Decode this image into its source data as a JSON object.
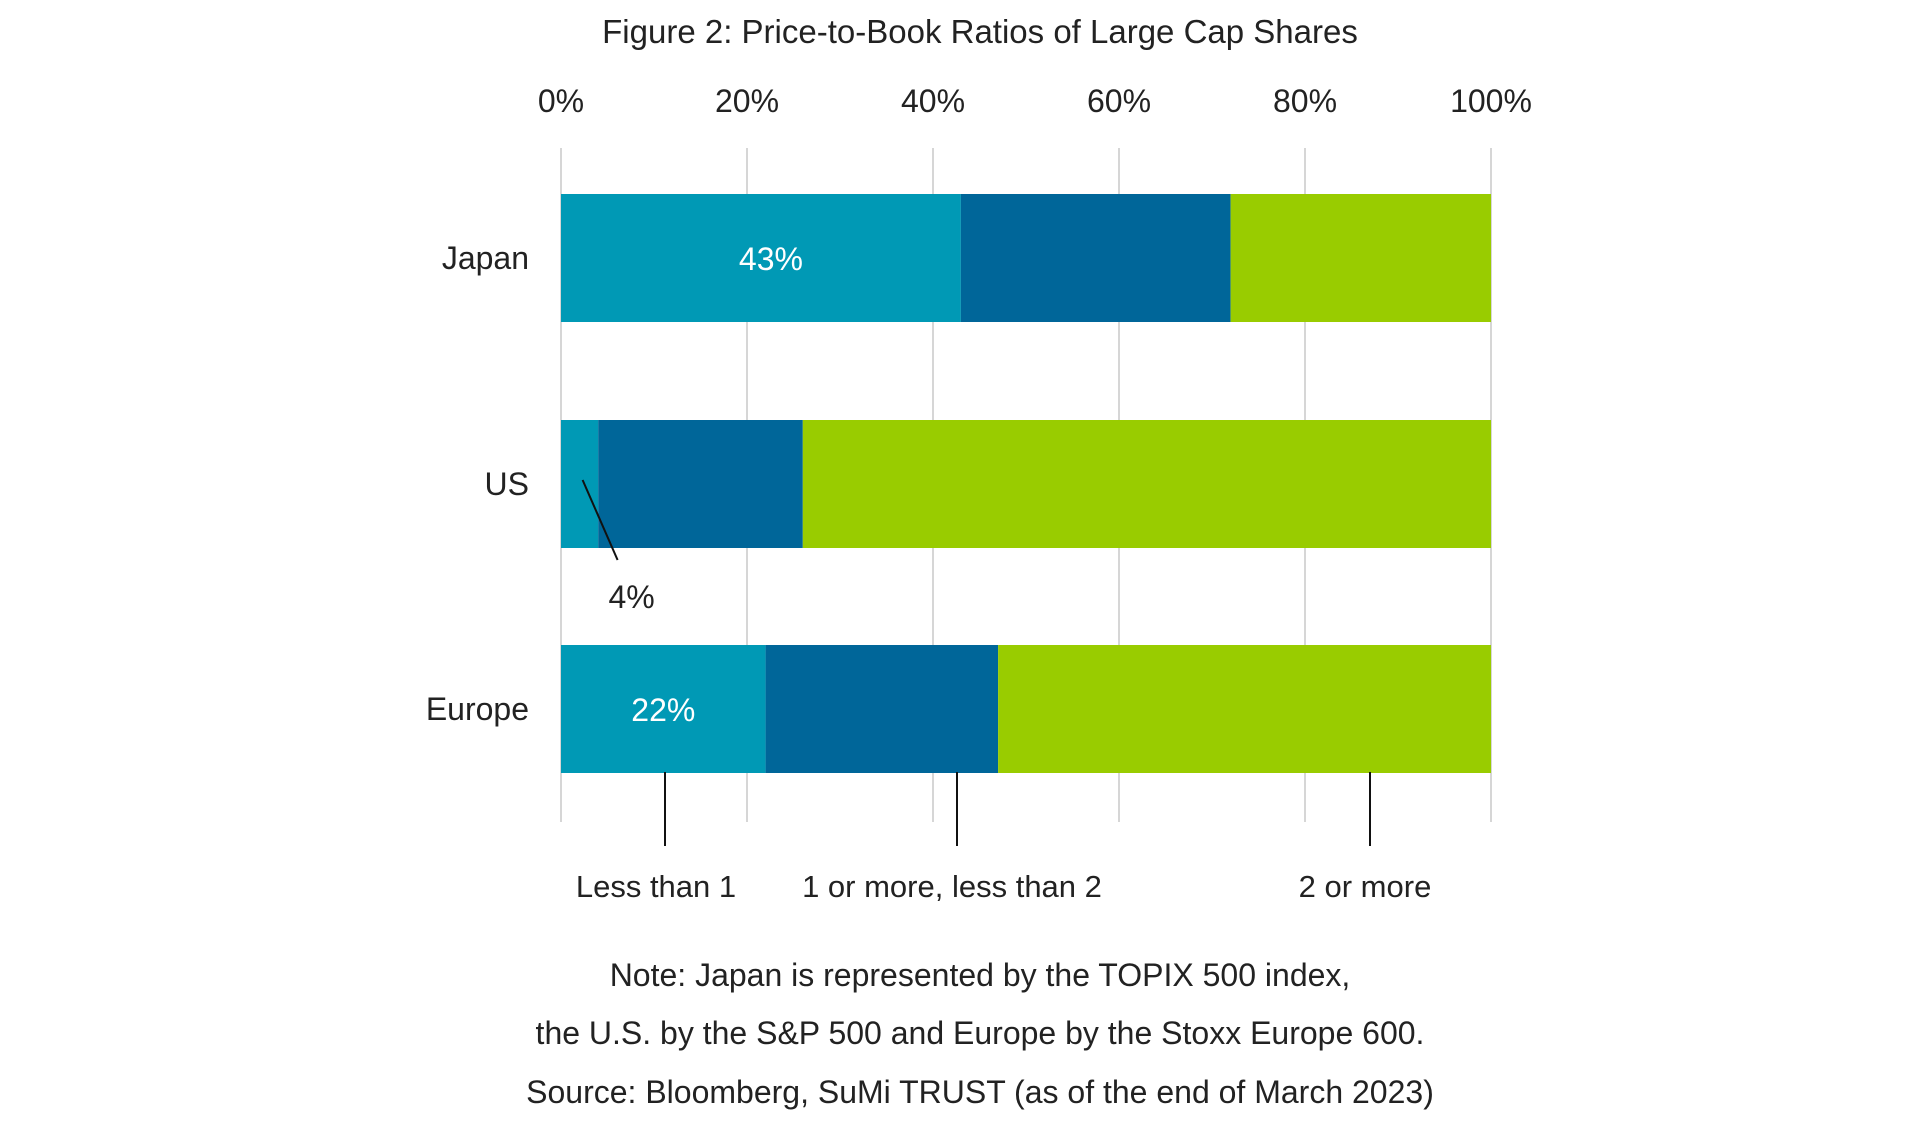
{
  "chart_data": {
    "type": "bar",
    "orientation": "horizontal",
    "stacked": true,
    "title": "Figure 2: Price-to-Book Ratios of Large Cap Shares",
    "categories": [
      "Japan",
      "US",
      "Europe"
    ],
    "series": [
      {
        "name": "Less than 1",
        "values": [
          43,
          4,
          22
        ],
        "color": "#0099B5"
      },
      {
        "name": "1 or more, less than 2",
        "values": [
          29,
          22,
          25
        ],
        "color": "#006699"
      },
      {
        "name": "2 or more",
        "values": [
          28,
          74,
          53
        ],
        "color": "#99CC00"
      }
    ],
    "data_labels": [
      {
        "category": "Japan",
        "series": "Less than 1",
        "text": "43%"
      },
      {
        "category": "US",
        "series": "Less than 1",
        "text": "4%"
      },
      {
        "category": "Europe",
        "series": "Less than 1",
        "text": "22%"
      }
    ],
    "xlim": [
      0,
      100
    ],
    "xticks": [
      "0%",
      "20%",
      "40%",
      "60%",
      "80%",
      "100%"
    ],
    "xaxis_position": "top",
    "grid": true,
    "legend_position": "bottom",
    "notes": [
      "Note: Japan is represented by the TOPIX 500 index,",
      "the U.S. by the S&P 500 and Europe by the Stoxx Europe 600.",
      "Source: Bloomberg, SuMi TRUST (as of the end of March 2023)"
    ]
  }
}
